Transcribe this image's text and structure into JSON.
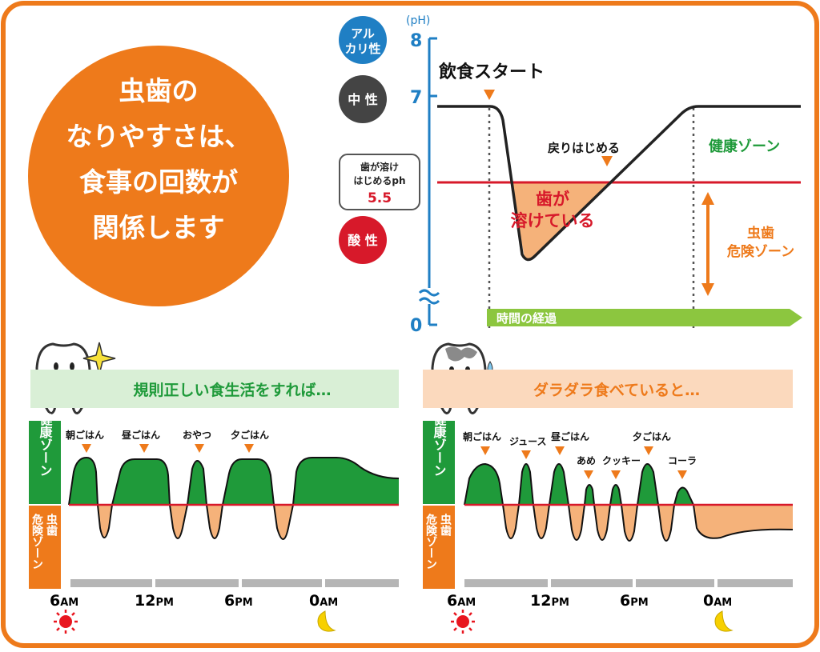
{
  "title_circle": {
    "lines": [
      "虫歯の",
      "なりやすさは、",
      "食事の回数が",
      "関係します"
    ],
    "color": "#ee7a1b"
  },
  "ph_chart": {
    "unit_label": "(pH)",
    "axis_values": {
      "top": "8",
      "middle": "7",
      "bottom": "0"
    },
    "badges": {
      "alkaline": [
        "アル",
        "カリ性"
      ],
      "neutral": "中 性",
      "acidic": "酸 性"
    },
    "threshold_box": {
      "lines": [
        "歯が溶け",
        "はじめるph"
      ],
      "value": "5.5"
    },
    "labels": {
      "start": "飲食スタート",
      "recover": "戻りはじめる",
      "dissolving": [
        "歯が",
        "溶けている"
      ],
      "healthy_zone": "健康ゾーン",
      "danger_zone": [
        "虫歯",
        "危険ゾーン"
      ],
      "time_arrow": "時間の経過"
    },
    "colors": {
      "axis": "#1f7fc4",
      "threshold": "#d7192a",
      "healthy": "#1f9a3a",
      "danger": "#ee7a1b",
      "time": "#8cc63f"
    }
  },
  "panel_left": {
    "heading": "規則正しい食生活をすれば…",
    "zone_healthy": "健康ゾーン",
    "zone_danger": [
      "虫歯",
      "危険ゾーン"
    ],
    "meals": [
      "朝ごはん",
      "昼ごはん",
      "おやつ",
      "夕ごはん"
    ],
    "time_ticks": [
      {
        "num": "6",
        "suffix": "AM"
      },
      {
        "num": "12",
        "suffix": "PM"
      },
      {
        "num": "6",
        "suffix": "PM"
      },
      {
        "num": "0",
        "suffix": "AM"
      }
    ]
  },
  "panel_right": {
    "heading": "ダラダラ食べていると…",
    "zone_healthy": "健康ゾーン",
    "zone_danger": [
      "虫歯",
      "危険ゾーン"
    ],
    "meals": [
      "朝ごはん",
      "ジュース",
      "昼ごはん",
      "あめ",
      "クッキー",
      "夕ごはん",
      "コーラ"
    ],
    "time_ticks": [
      {
        "num": "6",
        "suffix": "AM"
      },
      {
        "num": "12",
        "suffix": "PM"
      },
      {
        "num": "6",
        "suffix": "PM"
      },
      {
        "num": "0",
        "suffix": "AM"
      }
    ]
  }
}
